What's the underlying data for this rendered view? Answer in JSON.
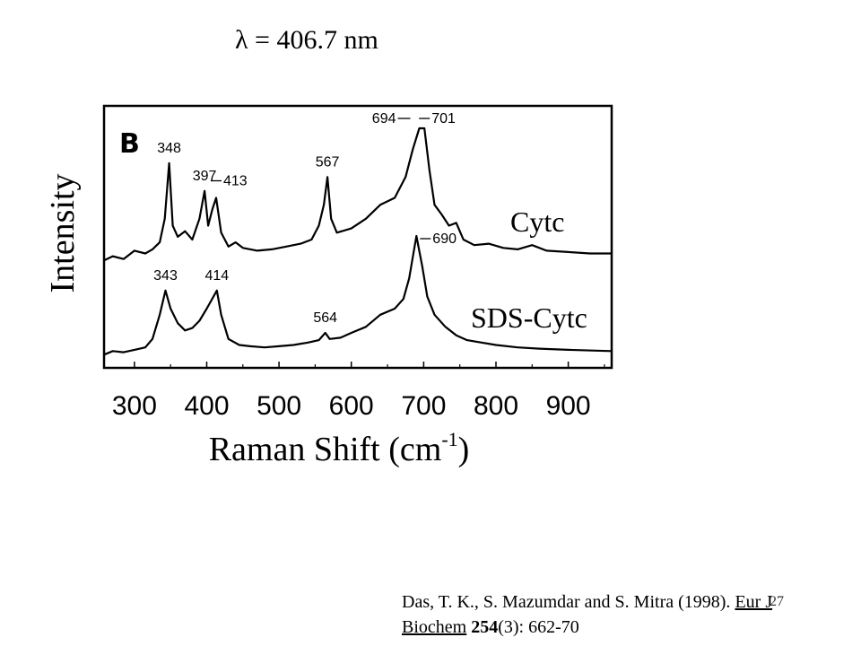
{
  "title": "λ = 406.7 nm",
  "citation": {
    "authors": "Das, T. K., S. Mazumdar and S. Mitra (1998). ",
    "journal": "Eur J Biochem",
    "volume": "254",
    "issue_pages": "(3): 662-70"
  },
  "slide_number": "27",
  "chart_data": {
    "type": "line",
    "panel_label": "B",
    "xlabel": "Raman Shift (cm",
    "xlabel_sup": "-1",
    "xlabel_close": ")",
    "ylabel": "Intensity",
    "xlim": [
      258,
      960
    ],
    "x_ticks": [
      300,
      400,
      500,
      600,
      700,
      800,
      900
    ],
    "grid": false,
    "legend": "none",
    "series": [
      {
        "name": "Cytc",
        "peaks": [
          {
            "x": 348,
            "label": "348"
          },
          {
            "x": 397,
            "label": "397"
          },
          {
            "x": 413,
            "label": "413"
          },
          {
            "x": 567,
            "label": "567"
          },
          {
            "x": 694,
            "label": "694"
          },
          {
            "x": 701,
            "label": "701"
          }
        ],
        "points": [
          [
            258,
            0.05
          ],
          [
            270,
            0.08
          ],
          [
            285,
            0.06
          ],
          [
            300,
            0.12
          ],
          [
            315,
            0.1
          ],
          [
            325,
            0.13
          ],
          [
            335,
            0.18
          ],
          [
            342,
            0.35
          ],
          [
            348,
            0.75
          ],
          [
            353,
            0.3
          ],
          [
            360,
            0.22
          ],
          [
            370,
            0.26
          ],
          [
            380,
            0.2
          ],
          [
            390,
            0.35
          ],
          [
            397,
            0.55
          ],
          [
            402,
            0.3
          ],
          [
            408,
            0.42
          ],
          [
            413,
            0.5
          ],
          [
            420,
            0.25
          ],
          [
            430,
            0.15
          ],
          [
            440,
            0.18
          ],
          [
            450,
            0.14
          ],
          [
            470,
            0.12
          ],
          [
            490,
            0.13
          ],
          [
            510,
            0.15
          ],
          [
            530,
            0.17
          ],
          [
            545,
            0.2
          ],
          [
            555,
            0.3
          ],
          [
            562,
            0.45
          ],
          [
            567,
            0.65
          ],
          [
            572,
            0.35
          ],
          [
            580,
            0.25
          ],
          [
            600,
            0.28
          ],
          [
            620,
            0.35
          ],
          [
            640,
            0.45
          ],
          [
            660,
            0.5
          ],
          [
            675,
            0.65
          ],
          [
            685,
            0.85
          ],
          [
            694,
            1.0
          ],
          [
            701,
            1.0
          ],
          [
            708,
            0.7
          ],
          [
            715,
            0.45
          ],
          [
            725,
            0.38
          ],
          [
            735,
            0.3
          ],
          [
            745,
            0.32
          ],
          [
            755,
            0.2
          ],
          [
            770,
            0.16
          ],
          [
            790,
            0.17
          ],
          [
            810,
            0.14
          ],
          [
            830,
            0.13
          ],
          [
            850,
            0.16
          ],
          [
            870,
            0.12
          ],
          [
            900,
            0.11
          ],
          [
            930,
            0.1
          ],
          [
            960,
            0.1
          ]
        ]
      },
      {
        "name": "SDS-Cytc",
        "peaks": [
          {
            "x": 343,
            "label": "343"
          },
          {
            "x": 414,
            "label": "414"
          },
          {
            "x": 564,
            "label": "564"
          },
          {
            "x": 690,
            "label": "690"
          }
        ],
        "points": [
          [
            258,
            0.02
          ],
          [
            270,
            0.05
          ],
          [
            285,
            0.04
          ],
          [
            300,
            0.06
          ],
          [
            315,
            0.08
          ],
          [
            325,
            0.15
          ],
          [
            335,
            0.35
          ],
          [
            343,
            0.55
          ],
          [
            350,
            0.4
          ],
          [
            360,
            0.28
          ],
          [
            370,
            0.22
          ],
          [
            380,
            0.24
          ],
          [
            390,
            0.3
          ],
          [
            400,
            0.4
          ],
          [
            414,
            0.55
          ],
          [
            420,
            0.35
          ],
          [
            430,
            0.15
          ],
          [
            445,
            0.1
          ],
          [
            460,
            0.09
          ],
          [
            480,
            0.08
          ],
          [
            500,
            0.09
          ],
          [
            520,
            0.1
          ],
          [
            540,
            0.12
          ],
          [
            555,
            0.14
          ],
          [
            564,
            0.2
          ],
          [
            570,
            0.15
          ],
          [
            585,
            0.16
          ],
          [
            600,
            0.2
          ],
          [
            620,
            0.25
          ],
          [
            640,
            0.35
          ],
          [
            660,
            0.4
          ],
          [
            672,
            0.48
          ],
          [
            680,
            0.65
          ],
          [
            690,
            1.0
          ],
          [
            698,
            0.75
          ],
          [
            705,
            0.5
          ],
          [
            715,
            0.35
          ],
          [
            730,
            0.25
          ],
          [
            745,
            0.18
          ],
          [
            760,
            0.14
          ],
          [
            780,
            0.12
          ],
          [
            800,
            0.1
          ],
          [
            830,
            0.08
          ],
          [
            860,
            0.07
          ],
          [
            900,
            0.06
          ],
          [
            960,
            0.05
          ]
        ]
      }
    ]
  }
}
